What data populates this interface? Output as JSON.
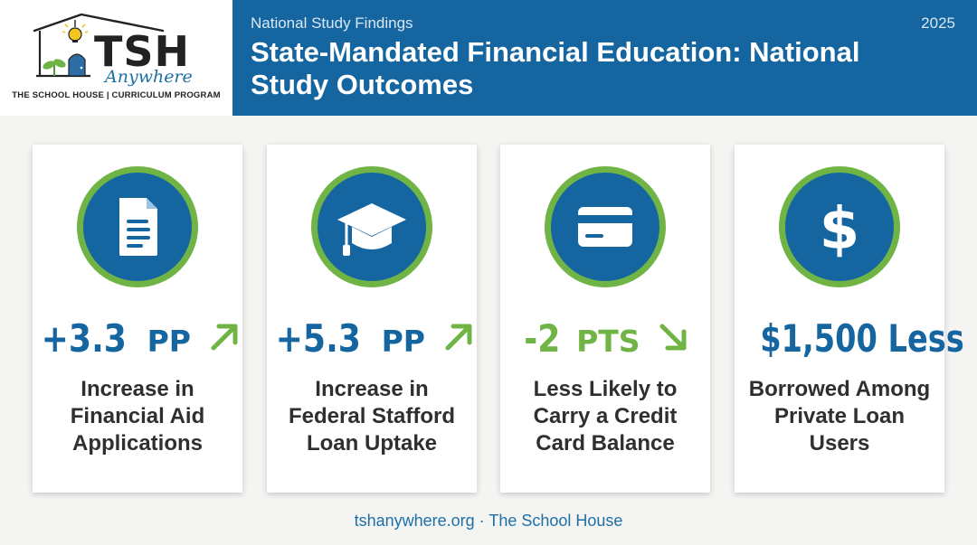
{
  "logo": {
    "wordmark": "TSH",
    "script": "Anywhere",
    "tagline": "THE SCHOOL HOUSE | CURRICULUM PROGRAM"
  },
  "header": {
    "eyebrow": "National Study Findings",
    "title": "State-Mandated Financial Education: National Study Outcomes",
    "year": "2025"
  },
  "cards": [
    {
      "icon": "document-icon",
      "stat_value": "+3.3",
      "stat_unit": "PP",
      "trend": "up",
      "description": "Increase in Financial Aid Applications"
    },
    {
      "icon": "graduation-cap-icon",
      "stat_value": "+5.3",
      "stat_unit": "PP",
      "trend": "up",
      "description": "Increase in Federal Stafford Loan Uptake"
    },
    {
      "icon": "credit-card-icon",
      "stat_value": "-2",
      "stat_unit": "PTS",
      "trend": "down",
      "description": "Less Likely to Carry a Credit Card Balance"
    },
    {
      "icon": "dollar-icon",
      "stat_value": "$1,500 Less",
      "stat_unit": "",
      "trend": "none",
      "description": "Borrowed Among Private Loan Users"
    }
  ],
  "footer": {
    "text": "tshanywhere.org · The School House"
  },
  "colors": {
    "brand_blue": "#1565a0",
    "accent_green": "#6fb445",
    "text_dark": "#2f2f2f"
  }
}
